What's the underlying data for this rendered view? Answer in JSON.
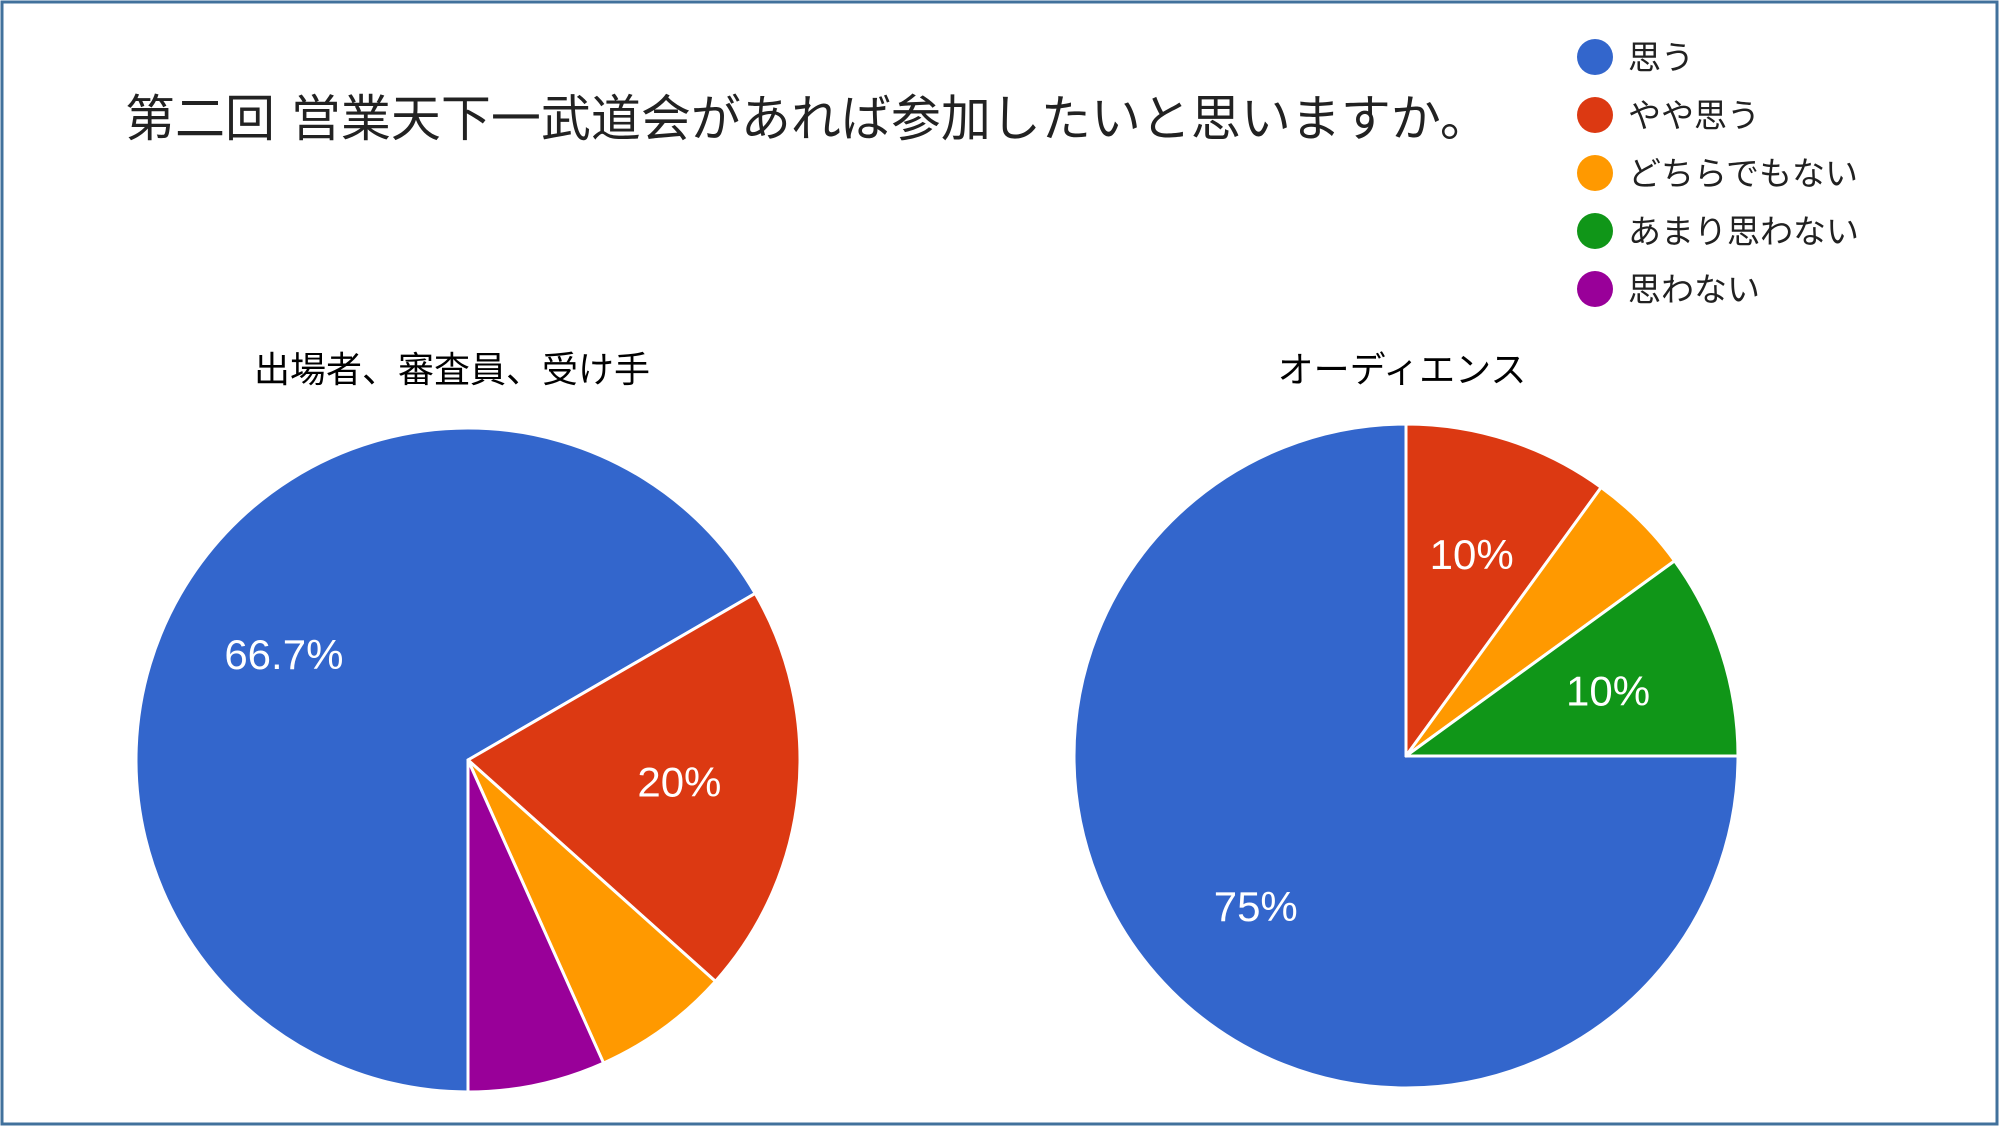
{
  "title": "第二回 営業天下一武道会があれば参加したいと思いますか。",
  "legend": [
    {
      "label": "思う",
      "color": "#3366cc"
    },
    {
      "label": "やや思う",
      "color": "#dc3912"
    },
    {
      "label": "どちらでもない",
      "color": "#ff9900"
    },
    {
      "label": "あまり思わない",
      "color": "#109618"
    },
    {
      "label": "思わない",
      "color": "#990099"
    }
  ],
  "chart_data": [
    {
      "type": "pie",
      "title": "出場者、審査員、受け手",
      "start_angle_deg": 90,
      "direction": "clockwise",
      "slices": [
        {
          "category": "思う",
          "value": 66.7,
          "color": "#3366cc",
          "label": "66.7%"
        },
        {
          "category": "やや思う",
          "value": 20.0,
          "color": "#dc3912",
          "label": "20%"
        },
        {
          "category": "どちらでもない",
          "value": 6.7,
          "color": "#ff9900",
          "label": ""
        },
        {
          "category": "あまり思わない",
          "value": 0,
          "color": "#109618",
          "label": ""
        },
        {
          "category": "思わない",
          "value": 6.7,
          "color": "#990099",
          "label": ""
        }
      ]
    },
    {
      "type": "pie",
      "title": "オーディエンス",
      "start_angle_deg": 0,
      "direction": "clockwise",
      "slices": [
        {
          "category": "思う",
          "value": 75,
          "color": "#3366cc",
          "label": "75%"
        },
        {
          "category": "やや思う",
          "value": 10,
          "color": "#dc3912",
          "label": "10%"
        },
        {
          "category": "どちらでもない",
          "value": 5,
          "color": "#ff9900",
          "label": ""
        },
        {
          "category": "あまり思わない",
          "value": 10,
          "color": "#109618",
          "label": "10%"
        },
        {
          "category": "思わない",
          "value": 0,
          "color": "#990099",
          "label": ""
        }
      ]
    }
  ]
}
